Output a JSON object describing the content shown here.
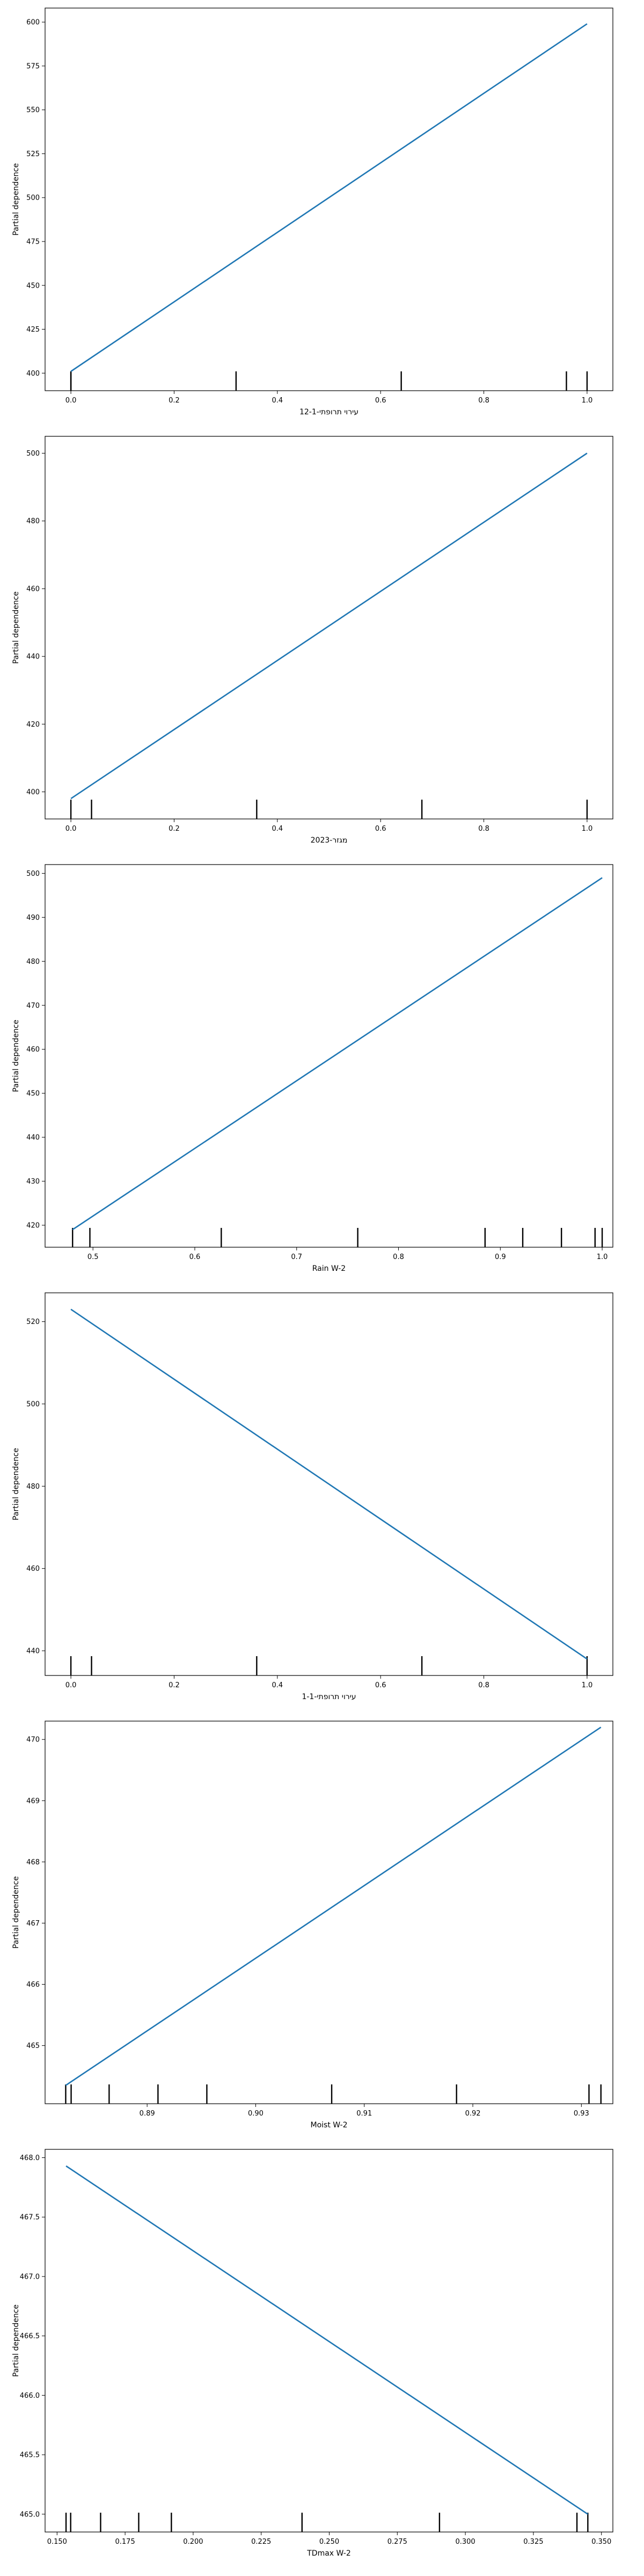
{
  "chart_data": [
    {
      "type": "line",
      "xlabel": "עירוי תרופתי-12-1",
      "ylabel": "Partial dependence",
      "xlim": [
        -0.05,
        1.05
      ],
      "ylim": [
        390,
        608
      ],
      "xticks": [
        0.0,
        0.2,
        0.4,
        0.6,
        0.8,
        1.0
      ],
      "xtick_labels": [
        "0.0",
        "0.2",
        "0.4",
        "0.6",
        "0.8",
        "1.0"
      ],
      "yticks": [
        400,
        425,
        450,
        475,
        500,
        525,
        550,
        575,
        600
      ],
      "ytick_labels": [
        "400",
        "425",
        "450",
        "475",
        "500",
        "525",
        "550",
        "575",
        "600"
      ],
      "x": [
        0.0,
        1.0
      ],
      "y": [
        401,
        599
      ],
      "rug": [
        0.0,
        0.0,
        0.32,
        0.64,
        0.96,
        1.0
      ]
    },
    {
      "type": "line",
      "xlabel": "מגזר-2023",
      "ylabel": "Partial dependence",
      "xlim": [
        -0.05,
        1.05
      ],
      "ylim": [
        392,
        505
      ],
      "xticks": [
        0.0,
        0.2,
        0.4,
        0.6,
        0.8,
        1.0
      ],
      "xtick_labels": [
        "0.0",
        "0.2",
        "0.4",
        "0.6",
        "0.8",
        "1.0"
      ],
      "yticks": [
        400,
        420,
        440,
        460,
        480,
        500
      ],
      "ytick_labels": [
        "400",
        "420",
        "440",
        "460",
        "480",
        "500"
      ],
      "x": [
        0.0,
        1.0
      ],
      "y": [
        398,
        500
      ],
      "rug": [
        0.0,
        0.04,
        0.36,
        0.68,
        1.0
      ]
    },
    {
      "type": "line",
      "xlabel": "Rain W-2",
      "ylabel": "Partial dependence",
      "xlim": [
        0.453,
        1.0105
      ],
      "ylim": [
        415,
        502
      ],
      "xticks": [
        0.5,
        0.6,
        0.7,
        0.8,
        0.9,
        1.0
      ],
      "xtick_labels": [
        "0.5",
        "0.6",
        "0.7",
        "0.8",
        "0.9",
        "1.0"
      ],
      "yticks": [
        420,
        430,
        440,
        450,
        460,
        470,
        480,
        490,
        500
      ],
      "ytick_labels": [
        "420",
        "430",
        "440",
        "450",
        "460",
        "470",
        "480",
        "490",
        "500"
      ],
      "x": [
        0.48,
        1.0
      ],
      "y": [
        419,
        499
      ],
      "rug": [
        0.48,
        0.497,
        0.626,
        0.76,
        0.885,
        0.922,
        0.96,
        0.993,
        1.0
      ]
    },
    {
      "type": "line",
      "xlabel": "עירוי תרופתי-1-1",
      "ylabel": "Partial dependence",
      "xlim": [
        -0.05,
        1.05
      ],
      "ylim": [
        434,
        527
      ],
      "xticks": [
        0.0,
        0.2,
        0.4,
        0.6,
        0.8,
        1.0
      ],
      "xtick_labels": [
        "0.0",
        "0.2",
        "0.4",
        "0.6",
        "0.8",
        "1.0"
      ],
      "yticks": [
        440,
        460,
        480,
        500,
        520
      ],
      "ytick_labels": [
        "440",
        "460",
        "480",
        "500",
        "520"
      ],
      "x": [
        0.0,
        1.0
      ],
      "y": [
        523,
        438
      ],
      "rug": [
        0.0,
        0.04,
        0.36,
        0.68,
        1.0
      ]
    },
    {
      "type": "line",
      "xlabel": "Moist W-2",
      "ylabel": "Partial dependence",
      "xlim": [
        0.8806,
        0.9329
      ],
      "ylim": [
        464.05,
        470.3
      ],
      "xticks": [
        0.89,
        0.9,
        0.91,
        0.92,
        0.93
      ],
      "xtick_labels": [
        "0.89",
        "0.90",
        "0.91",
        "0.92",
        "0.93"
      ],
      "yticks": [
        465,
        466,
        467,
        468,
        469,
        470
      ],
      "ytick_labels": [
        "465",
        "466",
        "467",
        "468",
        "469",
        "470"
      ],
      "x": [
        0.8825,
        0.9318
      ],
      "y": [
        464.35,
        470.2
      ],
      "rug": [
        0.8825,
        0.883,
        0.8865,
        0.891,
        0.8955,
        0.907,
        0.9185,
        0.9307,
        0.9318
      ]
    },
    {
      "type": "line",
      "xlabel": "TDmax W-2",
      "ylabel": "Partial dependence",
      "xlim": [
        0.1456,
        0.3542
      ],
      "ylim": [
        464.85,
        468.07
      ],
      "xticks": [
        0.15,
        0.175,
        0.2,
        0.225,
        0.25,
        0.275,
        0.3,
        0.325,
        0.35
      ],
      "xtick_labels": [
        "0.150",
        "0.175",
        "0.200",
        "0.225",
        "0.250",
        "0.275",
        "0.300",
        "0.325",
        "0.350"
      ],
      "yticks": [
        465.0,
        465.5,
        466.0,
        466.5,
        467.0,
        467.5,
        468.0
      ],
      "ytick_labels": [
        "465.0",
        "465.5",
        "466.0",
        "466.5",
        "467.0",
        "467.5",
        "468.0"
      ],
      "x": [
        0.1533,
        0.345
      ],
      "y": [
        467.93,
        465.0
      ],
      "rug": [
        0.1533,
        0.155,
        0.166,
        0.18,
        0.192,
        0.24,
        0.2905,
        0.341,
        0.345
      ]
    }
  ]
}
